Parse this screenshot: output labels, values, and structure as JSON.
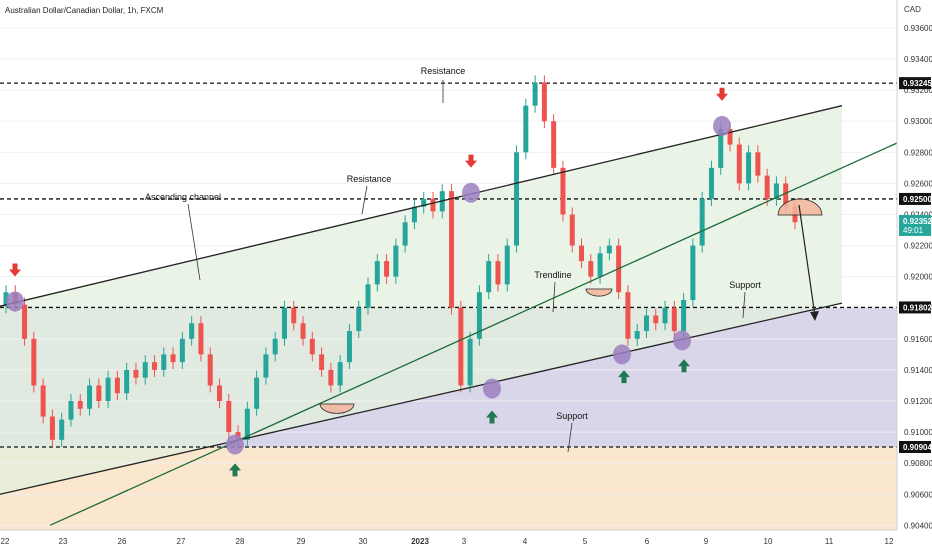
{
  "chart_data": {
    "type": "candlestick",
    "title": "Australian Dollar/Canadian Dollar, 1h, FXCM",
    "currency": "CAD",
    "y_ticks": [
      "0.93600",
      "0.93400",
      "0.93200",
      "0.93000",
      "0.92800",
      "0.92600",
      "0.92400",
      "0.92200",
      "0.92000",
      "0.91800",
      "0.91600",
      "0.91400",
      "0.91200",
      "0.91000",
      "0.90800",
      "0.90600",
      "0.90400"
    ],
    "ylim": [
      0.9037,
      0.9378
    ],
    "x_ticks": [
      "22",
      "23",
      "26",
      "27",
      "28",
      "29",
      "30",
      "2023",
      "3",
      "4",
      "5",
      "6",
      "9",
      "10",
      "11",
      "12"
    ],
    "price_labels": [
      {
        "value": 0.93245,
        "text": "0.93245",
        "style": "level"
      },
      {
        "value": 0.925,
        "text": "0.92500",
        "style": "level"
      },
      {
        "value": 0.92352,
        "text": "0.92352",
        "text2": "49:01",
        "style": "current"
      },
      {
        "value": 0.91802,
        "text": "0.91802",
        "style": "level"
      },
      {
        "value": 0.90904,
        "text": "0.90904",
        "style": "level"
      }
    ],
    "annotations": [
      "Resistance",
      "Resistance",
      "Ascending channel",
      "Trendline",
      "Support",
      "Support"
    ],
    "colors": {
      "up": "#26a69a",
      "down": "#ef5350",
      "channel": "#e2f0de",
      "support_zone": "#d9d6ea",
      "lower_zone": "#fbe7cd",
      "trendline": "#1b6b3a",
      "marker": "#9b7fc0",
      "arrow_down": "#e53935",
      "arrow_up": "#1f7a53",
      "current_badge": "#26a69a"
    },
    "series": [
      [
        0.9181,
        0.919
      ],
      [
        0.919,
        0.9182
      ],
      [
        0.9182,
        0.916
      ],
      [
        0.916,
        0.913
      ],
      [
        0.913,
        0.911
      ],
      [
        0.911,
        0.9095
      ],
      [
        0.9095,
        0.9108
      ],
      [
        0.9108,
        0.912
      ],
      [
        0.912,
        0.9115
      ],
      [
        0.9115,
        0.913
      ],
      [
        0.913,
        0.912
      ],
      [
        0.912,
        0.9135
      ],
      [
        0.9135,
        0.9125
      ],
      [
        0.9125,
        0.914
      ],
      [
        0.914,
        0.9135
      ],
      [
        0.9135,
        0.9145
      ],
      [
        0.9145,
        0.914
      ],
      [
        0.914,
        0.915
      ],
      [
        0.915,
        0.9145
      ],
      [
        0.9145,
        0.916
      ],
      [
        0.916,
        0.917
      ],
      [
        0.917,
        0.915
      ],
      [
        0.915,
        0.913
      ],
      [
        0.913,
        0.912
      ],
      [
        0.912,
        0.91
      ],
      [
        0.91,
        0.9095
      ],
      [
        0.9095,
        0.9115
      ],
      [
        0.9115,
        0.9135
      ],
      [
        0.9135,
        0.915
      ],
      [
        0.915,
        0.916
      ],
      [
        0.916,
        0.918
      ],
      [
        0.918,
        0.917
      ],
      [
        0.917,
        0.916
      ],
      [
        0.916,
        0.915
      ],
      [
        0.915,
        0.914
      ],
      [
        0.914,
        0.913
      ],
      [
        0.913,
        0.9145
      ],
      [
        0.9145,
        0.9165
      ],
      [
        0.9165,
        0.918
      ],
      [
        0.918,
        0.9195
      ],
      [
        0.9195,
        0.921
      ],
      [
        0.921,
        0.92
      ],
      [
        0.92,
        0.922
      ],
      [
        0.922,
        0.9235
      ],
      [
        0.9235,
        0.9245
      ],
      [
        0.9245,
        0.925
      ],
      [
        0.925,
        0.9242
      ],
      [
        0.9242,
        0.9255
      ],
      [
        0.9255,
        0.918
      ],
      [
        0.918,
        0.913
      ],
      [
        0.913,
        0.916
      ],
      [
        0.916,
        0.919
      ],
      [
        0.919,
        0.921
      ],
      [
        0.921,
        0.9195
      ],
      [
        0.9195,
        0.922
      ],
      [
        0.922,
        0.928
      ],
      [
        0.928,
        0.931
      ],
      [
        0.931,
        0.9325
      ],
      [
        0.9325,
        0.93
      ],
      [
        0.93,
        0.927
      ],
      [
        0.927,
        0.924
      ],
      [
        0.924,
        0.922
      ],
      [
        0.922,
        0.921
      ],
      [
        0.921,
        0.92
      ],
      [
        0.92,
        0.9215
      ],
      [
        0.9215,
        0.922
      ],
      [
        0.922,
        0.919
      ],
      [
        0.919,
        0.916
      ],
      [
        0.916,
        0.9165
      ],
      [
        0.9165,
        0.9175
      ],
      [
        0.9175,
        0.917
      ],
      [
        0.917,
        0.918
      ],
      [
        0.918,
        0.9165
      ],
      [
        0.9165,
        0.9185
      ],
      [
        0.9185,
        0.922
      ],
      [
        0.922,
        0.925
      ],
      [
        0.925,
        0.927
      ],
      [
        0.927,
        0.9295
      ],
      [
        0.9295,
        0.9285
      ],
      [
        0.9285,
        0.926
      ],
      [
        0.926,
        0.928
      ],
      [
        0.928,
        0.9265
      ],
      [
        0.9265,
        0.925
      ],
      [
        0.925,
        0.926
      ],
      [
        0.926,
        0.9245
      ],
      [
        0.9245,
        0.9235
      ]
    ]
  }
}
